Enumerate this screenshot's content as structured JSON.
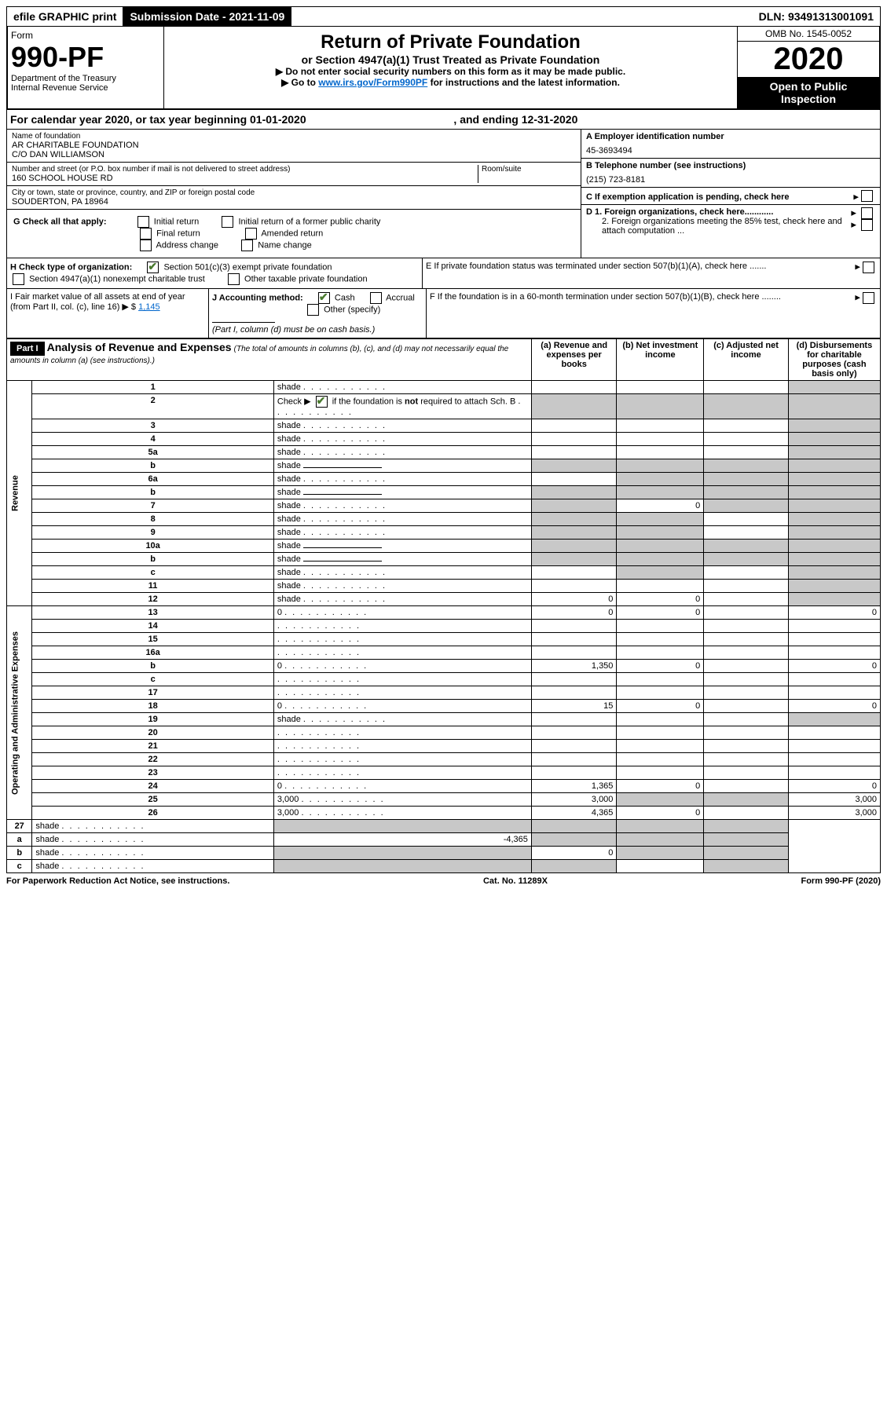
{
  "topbar": {
    "efile": "efile GRAPHIC print",
    "sub_label": "Submission Date - ",
    "sub_date": "2021-11-09",
    "dln_label": "DLN: ",
    "dln": "93491313001091"
  },
  "header": {
    "form_word": "Form",
    "form_no": "990-PF",
    "dept": "Department of the Treasury\nInternal Revenue Service",
    "title": "Return of Private Foundation",
    "subtitle": "or Section 4947(a)(1) Trust Treated as Private Foundation",
    "instr1": "▶ Do not enter social security numbers on this form as it may be made public.",
    "instr2_pre": "▶ Go to ",
    "instr2_link": "www.irs.gov/Form990PF",
    "instr2_post": " for instructions and the latest information.",
    "omb": "OMB No. 1545-0052",
    "year": "2020",
    "open": "Open to Public Inspection"
  },
  "cal_year": {
    "text_a": "For calendar year 2020, or tax year beginning ",
    "begin": "01-01-2020",
    "text_b": " , and ending ",
    "end": "12-31-2020"
  },
  "entity": {
    "name_label": "Name of foundation",
    "name1": "AR CHARITABLE FOUNDATION",
    "name2": "C/O DAN WILLIAMSON",
    "addr_label": "Number and street (or P.O. box number if mail is not delivered to street address)",
    "addr": "160 SCHOOL HOUSE RD",
    "room_label": "Room/suite",
    "city_label": "City or town, state or province, country, and ZIP or foreign postal code",
    "city": "SOUDERTON, PA  18964",
    "ein_label": "A Employer identification number",
    "ein": "45-3693494",
    "phone_label": "B Telephone number (see instructions)",
    "phone": "(215) 723-8181",
    "c_label": "C If exemption application is pending, check here",
    "d1": "D 1. Foreign organizations, check here............",
    "d2": "2. Foreign organizations meeting the 85% test, check here and attach computation ...",
    "e": "E  If private foundation status was terminated under section 507(b)(1)(A), check here .......",
    "f": "F  If the foundation is in a 60-month termination under section 507(b)(1)(B), check here ........"
  },
  "checks": {
    "g_label": "G Check all that apply:",
    "g_opts": [
      "Initial return",
      "Initial return of a former public charity",
      "Final return",
      "Amended return",
      "Address change",
      "Name change"
    ],
    "h_label": "H Check type of organization:",
    "h1": "Section 501(c)(3) exempt private foundation",
    "h2": "Section 4947(a)(1) nonexempt charitable trust",
    "h3": "Other taxable private foundation",
    "i_label": "I Fair market value of all assets at end of year (from Part II, col. (c), line 16) ▶ $ ",
    "i_val": "1,145",
    "j_label": "J Accounting method:",
    "j_cash": "Cash",
    "j_accrual": "Accrual",
    "j_other": "Other (specify)",
    "j_note": "(Part I, column (d) must be on cash basis.)"
  },
  "part1": {
    "label": "Part I",
    "title": "Analysis of Revenue and Expenses",
    "title_note": " (The total of amounts in columns (b), (c), and (d) may not necessarily equal the amounts in column (a) (see instructions).)",
    "cols": {
      "a": "(a) Revenue and expenses per books",
      "b": "(b) Net investment income",
      "c": "(c) Adjusted net income",
      "d": "(d) Disbursements for charitable purposes (cash basis only)"
    }
  },
  "sections": {
    "revenue": "Revenue",
    "opex": "Operating and Administrative Expenses"
  },
  "rows": [
    {
      "n": "1",
      "d": "shade",
      "a": "",
      "b": "",
      "c": ""
    },
    {
      "n": "2",
      "d": "shade",
      "a": "shade",
      "b": "shade",
      "c": "shade",
      "check": true
    },
    {
      "n": "3",
      "d": "shade",
      "a": "",
      "b": "",
      "c": ""
    },
    {
      "n": "4",
      "d": "shade",
      "a": "",
      "b": "",
      "c": ""
    },
    {
      "n": "5a",
      "d": "shade",
      "a": "",
      "b": "",
      "c": ""
    },
    {
      "n": "b",
      "d": "shade",
      "a": "shade",
      "b": "shade",
      "c": "shade",
      "inline": true
    },
    {
      "n": "6a",
      "d": "shade",
      "a": "",
      "b": "shade",
      "c": "shade"
    },
    {
      "n": "b",
      "d": "shade",
      "a": "shade",
      "b": "shade",
      "c": "shade",
      "inline": true
    },
    {
      "n": "7",
      "d": "shade",
      "a": "shade",
      "b": "0",
      "c": "shade"
    },
    {
      "n": "8",
      "d": "shade",
      "a": "shade",
      "b": "shade",
      "c": ""
    },
    {
      "n": "9",
      "d": "shade",
      "a": "shade",
      "b": "shade",
      "c": ""
    },
    {
      "n": "10a",
      "d": "shade",
      "a": "shade",
      "b": "shade",
      "c": "shade",
      "inline": true
    },
    {
      "n": "b",
      "d": "shade",
      "a": "shade",
      "b": "shade",
      "c": "shade",
      "inline": true
    },
    {
      "n": "c",
      "d": "shade",
      "a": "",
      "b": "shade",
      "c": ""
    },
    {
      "n": "11",
      "d": "shade",
      "a": "",
      "b": "",
      "c": ""
    },
    {
      "n": "12",
      "d": "shade",
      "a": "0",
      "b": "0",
      "c": ""
    }
  ],
  "rows2": [
    {
      "n": "13",
      "d": "0",
      "a": "0",
      "b": "0",
      "c": ""
    },
    {
      "n": "14",
      "d": "",
      "a": "",
      "b": "",
      "c": ""
    },
    {
      "n": "15",
      "d": "",
      "a": "",
      "b": "",
      "c": ""
    },
    {
      "n": "16a",
      "d": "",
      "a": "",
      "b": "",
      "c": ""
    },
    {
      "n": "b",
      "d": "0",
      "a": "1,350",
      "b": "0",
      "c": ""
    },
    {
      "n": "c",
      "d": "",
      "a": "",
      "b": "",
      "c": ""
    },
    {
      "n": "17",
      "d": "",
      "a": "",
      "b": "",
      "c": ""
    },
    {
      "n": "18",
      "d": "0",
      "a": "15",
      "b": "0",
      "c": ""
    },
    {
      "n": "19",
      "d": "shade",
      "a": "",
      "b": "",
      "c": ""
    },
    {
      "n": "20",
      "d": "",
      "a": "",
      "b": "",
      "c": ""
    },
    {
      "n": "21",
      "d": "",
      "a": "",
      "b": "",
      "c": ""
    },
    {
      "n": "22",
      "d": "",
      "a": "",
      "b": "",
      "c": ""
    },
    {
      "n": "23",
      "d": "",
      "a": "",
      "b": "",
      "c": ""
    },
    {
      "n": "24",
      "d": "0",
      "a": "1,365",
      "b": "0",
      "c": ""
    },
    {
      "n": "25",
      "d": "3,000",
      "a": "3,000",
      "b": "shade",
      "c": "shade"
    },
    {
      "n": "26",
      "d": "3,000",
      "a": "4,365",
      "b": "0",
      "c": ""
    }
  ],
  "rows3": [
    {
      "n": "27",
      "d": "shade",
      "a": "shade",
      "b": "shade",
      "c": "shade"
    },
    {
      "n": "a",
      "d": "shade",
      "a": "-4,365",
      "b": "shade",
      "c": "shade"
    },
    {
      "n": "b",
      "d": "shade",
      "a": "shade",
      "b": "0",
      "c": "shade"
    },
    {
      "n": "c",
      "d": "shade",
      "a": "shade",
      "b": "shade",
      "c": ""
    }
  ],
  "footer": {
    "left": "For Paperwork Reduction Act Notice, see instructions.",
    "mid": "Cat. No. 11289X",
    "right": "Form 990-PF (2020)"
  }
}
